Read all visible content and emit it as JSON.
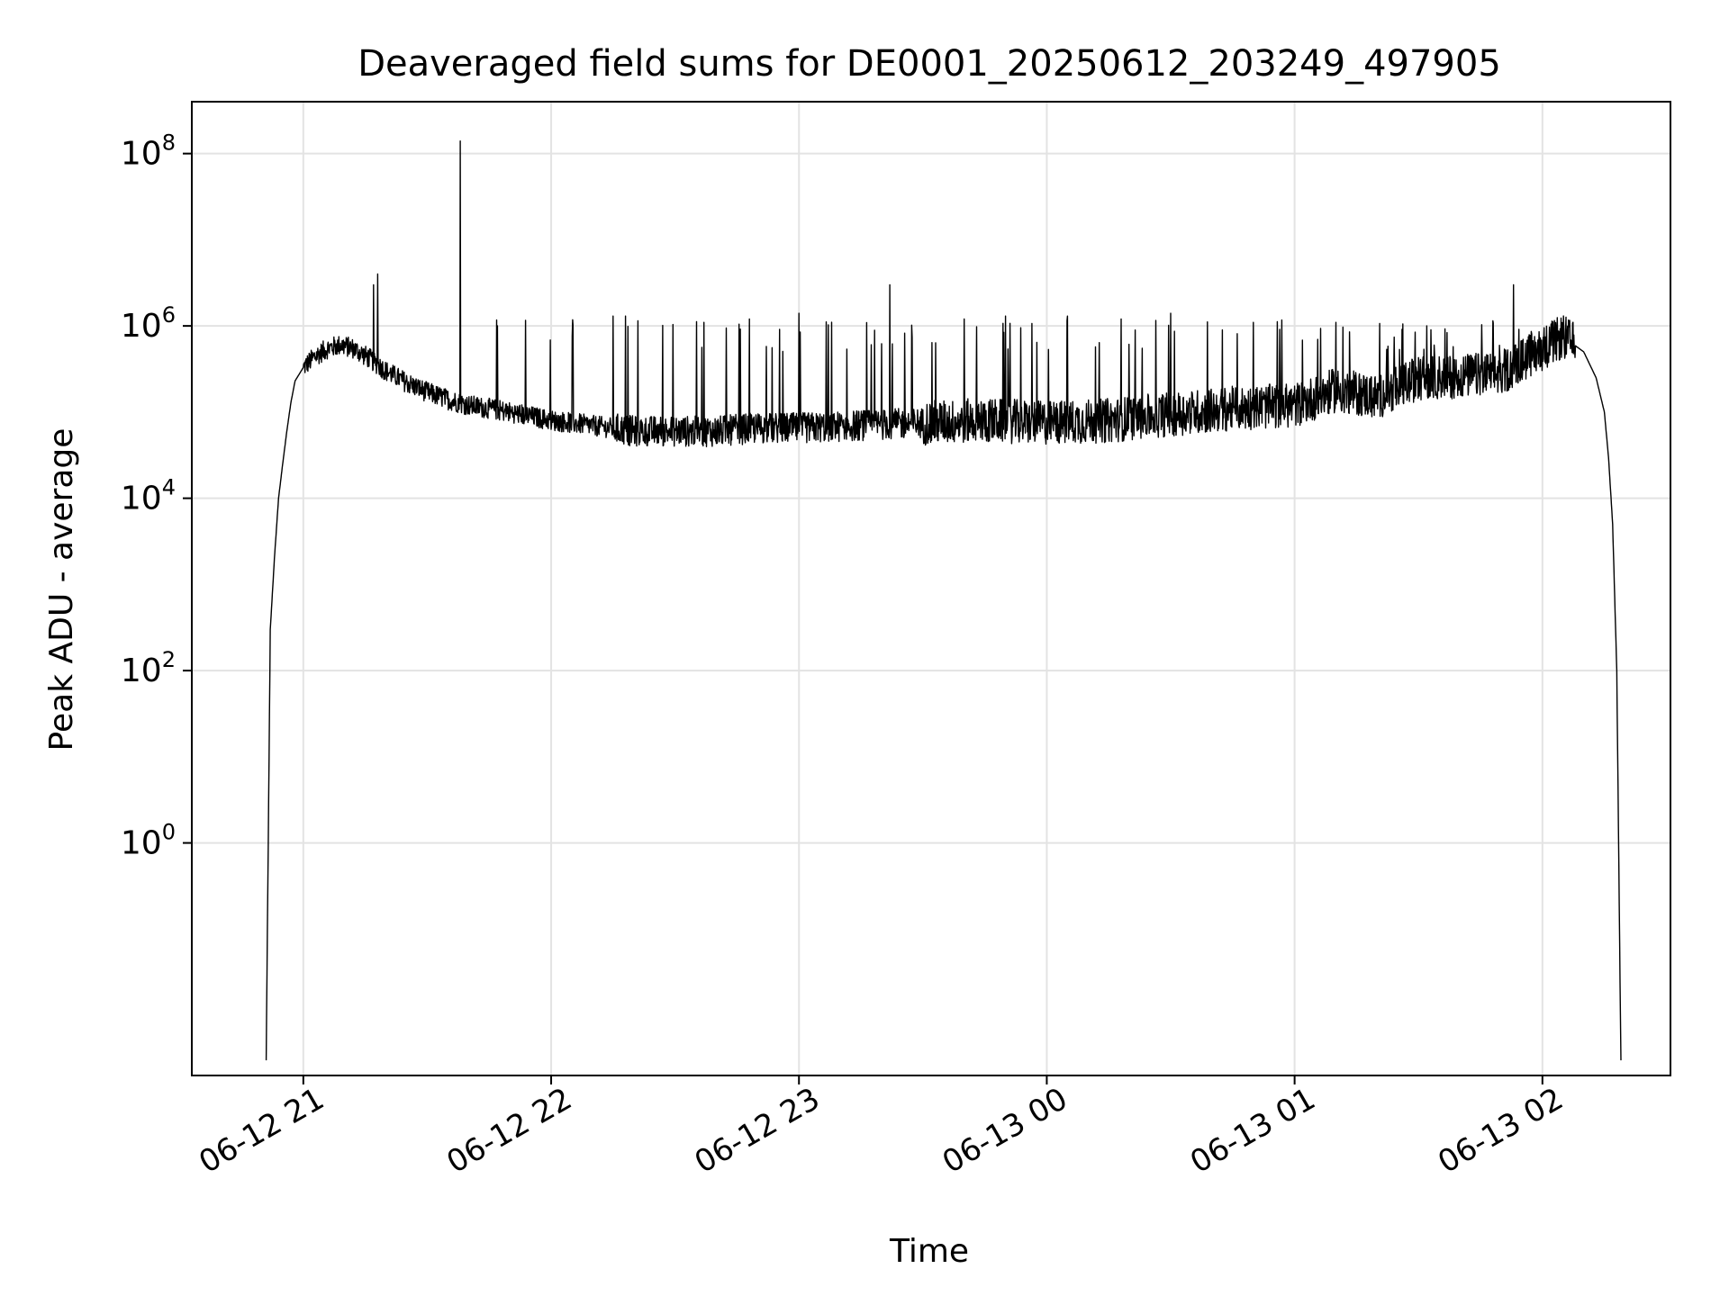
{
  "chart_data": {
    "type": "line",
    "title": "Deaveraged field sums for DE0001_20250612_203249_497905",
    "xlabel": "Time",
    "ylabel": "Peak ADU - average",
    "yscale": "log",
    "ylim": [
      0.002,
      400000000.0
    ],
    "xlim": [
      "2025-06-12 20:33",
      "2025-06-13 02:31"
    ],
    "grid": true,
    "line_color": "#000000",
    "x_ticks": [
      {
        "t": "2025-06-12 21:00",
        "label": "06-12 21"
      },
      {
        "t": "2025-06-12 22:00",
        "label": "06-12 22"
      },
      {
        "t": "2025-06-12 23:00",
        "label": "06-12 23"
      },
      {
        "t": "2025-06-13 00:00",
        "label": "06-13 00"
      },
      {
        "t": "2025-06-13 01:00",
        "label": "06-13 01"
      },
      {
        "t": "2025-06-13 02:00",
        "label": "06-13 02"
      }
    ],
    "y_ticks": [
      {
        "value": 1,
        "base": "10",
        "exp": "0"
      },
      {
        "value": 100,
        "base": "10",
        "exp": "2"
      },
      {
        "value": 10000,
        "base": "10",
        "exp": "4"
      },
      {
        "value": 1000000,
        "base": "10",
        "exp": "6"
      },
      {
        "value": 100000000,
        "base": "10",
        "exp": "8"
      }
    ],
    "series": [
      {
        "x": [
          "2025-06-12 20:51",
          "2025-06-12 20:52",
          "2025-06-12 20:53",
          "2025-06-12 20:54",
          "2025-06-12 20:55",
          "2025-06-12 20:56",
          "2025-06-12 20:57",
          "2025-06-12 20:58",
          "2025-06-12 21:00",
          "2025-06-12 21:03",
          "2025-06-12 21:06",
          "2025-06-12 21:09",
          "2025-06-12 21:12",
          "2025-06-12 21:16",
          "2025-06-12 21:20",
          "2025-06-12 21:25",
          "2025-06-12 21:30",
          "2025-06-12 21:35",
          "2025-06-12 21:40",
          "2025-06-12 21:45",
          "2025-06-12 21:50",
          "2025-06-12 22:00",
          "2025-06-12 22:10",
          "2025-06-12 22:20",
          "2025-06-12 22:30",
          "2025-06-12 22:40",
          "2025-06-12 22:50",
          "2025-06-12 23:00",
          "2025-06-12 23:15",
          "2025-06-12 23:30",
          "2025-06-12 23:45",
          "2025-06-13 00:00",
          "2025-06-13 00:15",
          "2025-06-13 00:30",
          "2025-06-13 00:45",
          "2025-06-13 01:00",
          "2025-06-13 01:10",
          "2025-06-13 01:20",
          "2025-06-13 01:30",
          "2025-06-13 01:40",
          "2025-06-13 01:50",
          "2025-06-13 01:55",
          "2025-06-13 02:00",
          "2025-06-13 02:05",
          "2025-06-13 02:10",
          "2025-06-13 02:13",
          "2025-06-13 02:15",
          "2025-06-13 02:16",
          "2025-06-13 02:17",
          "2025-06-13 02:18",
          "2025-06-13 02:19"
        ],
        "y": [
          0.003,
          300,
          2000,
          10000,
          25000,
          60000,
          130000,
          230000,
          330000,
          450000,
          550000,
          600000,
          550000,
          420000,
          300000,
          220000,
          170000,
          140000,
          120000,
          110000,
          100000,
          80000,
          70000,
          60000,
          60000,
          60000,
          65000,
          65000,
          70000,
          75000,
          80000,
          75000,
          80000,
          95000,
          110000,
          120000,
          180000,
          150000,
          250000,
          260000,
          280000,
          400000,
          550000,
          750000,
          500000,
          250000,
          100000,
          30000,
          5000,
          100,
          0.003
        ],
        "spikes": [
          {
            "t": "2025-06-12 21:17",
            "y": 3000000
          },
          {
            "t": "2025-06-12 21:18",
            "y": 4000000
          },
          {
            "t": "2025-06-12 21:38",
            "y": 140000000
          },
          {
            "t": "2025-06-12 21:47",
            "y": 1000000
          },
          {
            "t": "2025-06-12 22:15",
            "y": 1300000
          },
          {
            "t": "2025-06-12 22:18",
            "y": 1300000
          },
          {
            "t": "2025-06-12 22:37",
            "y": 1100000
          },
          {
            "t": "2025-06-12 22:48",
            "y": 1200000
          },
          {
            "t": "2025-06-12 23:00",
            "y": 1400000
          },
          {
            "t": "2025-06-12 23:22",
            "y": 3000000
          },
          {
            "t": "2025-06-12 23:40",
            "y": 1200000
          },
          {
            "t": "2025-06-12 23:50",
            "y": 1300000
          },
          {
            "t": "2025-06-13 00:05",
            "y": 1300000
          },
          {
            "t": "2025-06-13 00:18",
            "y": 1200000
          },
          {
            "t": "2025-06-13 00:30",
            "y": 1400000
          },
          {
            "t": "2025-06-13 00:50",
            "y": 1100000
          },
          {
            "t": "2025-06-13 01:10",
            "y": 1100000
          },
          {
            "t": "2025-06-13 01:32",
            "y": 1000000
          },
          {
            "t": "2025-06-13 01:53",
            "y": 3000000
          }
        ]
      }
    ]
  }
}
